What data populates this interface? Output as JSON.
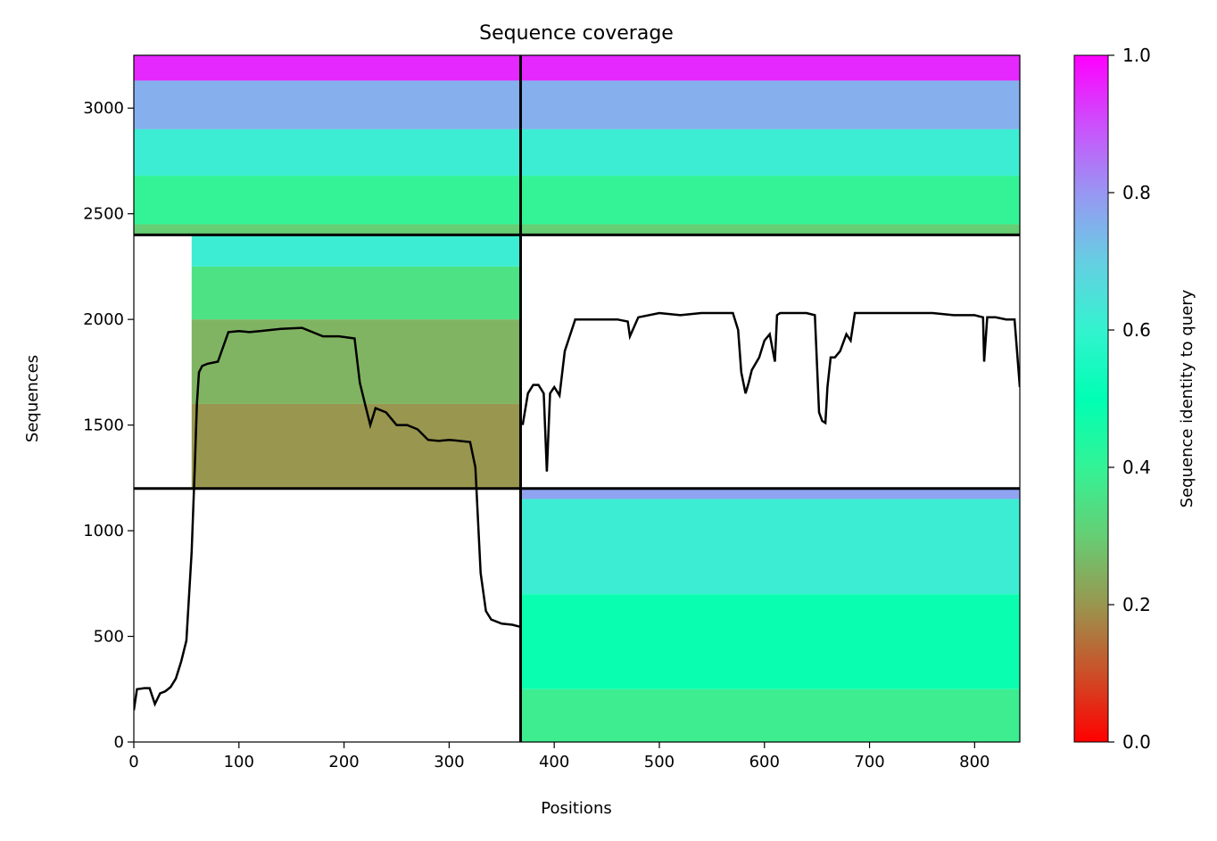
{
  "chart_data": {
    "type": "heatmap",
    "title": "Sequence coverage",
    "xlabel": "Positions",
    "ylabel": "Sequences",
    "xlim": [
      0,
      843
    ],
    "ylim": [
      0,
      3250
    ],
    "x_ticks": [
      0,
      100,
      200,
      300,
      400,
      500,
      600,
      700,
      800
    ],
    "y_ticks": [
      0,
      500,
      1000,
      1500,
      2000,
      2500,
      3000
    ],
    "grid": false,
    "colormap": "rainbow_r",
    "colorbar": {
      "label": "Sequence identity to query",
      "range": [
        0,
        1
      ],
      "ticks": [
        0.0,
        0.2,
        0.4,
        0.6,
        0.8,
        1.0
      ],
      "tick_labels": [
        "0.0",
        "0.2",
        "0.4",
        "0.6",
        "0.8",
        "1.0"
      ]
    },
    "chain_boundary_x": 368,
    "block_boundaries_y": [
      1200,
      2400
    ],
    "blocks": [
      {
        "x_range": [
          0,
          368
        ],
        "y_range": [
          2400,
          3250
        ],
        "filled_x": [
          [
            0,
            368
          ]
        ],
        "bands": [
          {
            "y": [
              3130,
              3250
            ],
            "identity": 0.95
          },
          {
            "y": [
              2900,
              3130
            ],
            "identity": 0.76
          },
          {
            "y": [
              2680,
              2900
            ],
            "identity": 0.62
          },
          {
            "y": [
              2450,
              2680
            ],
            "identity": 0.4
          },
          {
            "y": [
              2400,
              2450
            ],
            "identity": 0.3
          }
        ]
      },
      {
        "x_range": [
          368,
          843
        ],
        "y_range": [
          2400,
          3250
        ],
        "filled_x": [
          [
            368,
            843
          ]
        ],
        "bands": [
          {
            "y": [
              3130,
              3250
            ],
            "identity": 0.95
          },
          {
            "y": [
              2900,
              3130
            ],
            "identity": 0.76
          },
          {
            "y": [
              2680,
              2900
            ],
            "identity": 0.62
          },
          {
            "y": [
              2450,
              2680
            ],
            "identity": 0.4
          },
          {
            "y": [
              2400,
              2450
            ],
            "identity": 0.3
          }
        ]
      },
      {
        "x_range": [
          0,
          368
        ],
        "y_range": [
          1200,
          2400
        ],
        "filled_x": [
          [
            55,
            368
          ]
        ],
        "bands": [
          {
            "y": [
              2250,
              2400
            ],
            "identity": 0.62
          },
          {
            "y": [
              2000,
              2250
            ],
            "identity": 0.35
          },
          {
            "y": [
              1600,
              2000
            ],
            "identity": 0.25
          },
          {
            "y": [
              1200,
              1600
            ],
            "identity": 0.2
          }
        ]
      },
      {
        "x_range": [
          368,
          843
        ],
        "y_range": [
          0,
          1200
        ],
        "filled_x": [
          [
            368,
            843
          ]
        ],
        "bands": [
          {
            "y": [
              1150,
              1200
            ],
            "identity": 0.78
          },
          {
            "y": [
              700,
              1150
            ],
            "identity": 0.62
          },
          {
            "y": [
              250,
              700
            ],
            "identity": 0.48
          },
          {
            "y": [
              0,
              250
            ],
            "identity": 0.38
          }
        ]
      }
    ],
    "coverage_line": {
      "x": [
        0,
        3,
        10,
        15,
        20,
        25,
        30,
        35,
        40,
        45,
        50,
        55,
        58,
        60,
        62,
        65,
        70,
        80,
        90,
        100,
        110,
        120,
        140,
        160,
        180,
        195,
        210,
        215,
        220,
        225,
        230,
        240,
        250,
        260,
        270,
        280,
        290,
        300,
        320,
        325,
        330,
        335,
        340,
        350,
        360,
        368,
        370,
        375,
        380,
        385,
        390,
        393,
        396,
        400,
        405,
        410,
        420,
        440,
        460,
        470,
        472,
        480,
        500,
        520,
        540,
        560,
        570,
        575,
        578,
        582,
        585,
        588,
        595,
        600,
        605,
        610,
        612,
        615,
        618,
        622,
        630,
        640,
        648,
        652,
        655,
        658,
        660,
        663,
        667,
        672,
        678,
        682,
        686,
        690,
        700,
        720,
        740,
        760,
        780,
        800,
        808,
        809,
        812,
        820,
        830,
        838,
        843
      ],
      "y": [
        150,
        250,
        255,
        255,
        180,
        230,
        240,
        260,
        300,
        380,
        480,
        900,
        1300,
        1600,
        1750,
        1780,
        1790,
        1800,
        1940,
        1945,
        1940,
        1945,
        1955,
        1960,
        1920,
        1920,
        1910,
        1700,
        1600,
        1500,
        1580,
        1560,
        1500,
        1500,
        1480,
        1430,
        1425,
        1430,
        1420,
        1300,
        800,
        620,
        580,
        560,
        555,
        545,
        1500,
        1650,
        1690,
        1690,
        1650,
        1280,
        1650,
        1680,
        1640,
        1850,
        2000,
        2000,
        2000,
        1990,
        1920,
        2010,
        2030,
        2020,
        2030,
        2030,
        2030,
        1950,
        1750,
        1650,
        1700,
        1760,
        1820,
        1900,
        1930,
        1800,
        2020,
        2030,
        2030,
        2030,
        2030,
        2030,
        2020,
        1560,
        1520,
        1510,
        1680,
        1820,
        1820,
        1850,
        1930,
        1900,
        2030,
        2030,
        2030,
        2030,
        2030,
        2030,
        2020,
        2020,
        2010,
        1800,
        2010,
        2010,
        2000,
        2000,
        1680
      ]
    }
  }
}
